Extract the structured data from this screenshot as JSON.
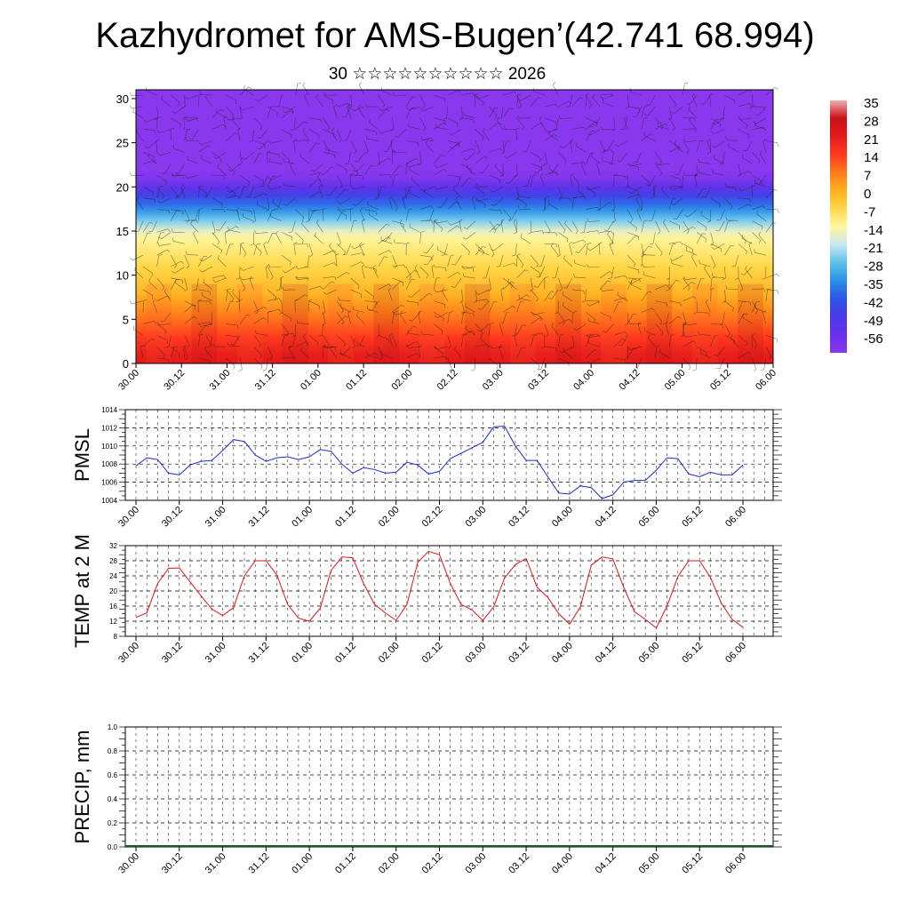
{
  "header": {
    "title": "Kazhydromet for AMS-Bugen’(42.741 68.994)",
    "subtitle": "30 ☆☆☆☆☆☆☆☆☆☆ 2026"
  },
  "time_ticks": [
    "30.00",
    "30.12",
    "31.00",
    "31.12",
    "01.00",
    "01.12",
    "02.00",
    "02.12",
    "03.00",
    "03.12",
    "04.00",
    "04.12",
    "05.00",
    "05.12",
    "06.00"
  ],
  "chart_data": [
    {
      "type": "heatmap",
      "name": "upper-air temperature and wind cross-section",
      "x_ticks": [
        "30.00",
        "30.12",
        "31.00",
        "31.12",
        "01.00",
        "01.12",
        "02.00",
        "02.12",
        "03.00",
        "03.12",
        "04.00",
        "04.12",
        "05.00",
        "05.12",
        "06.00"
      ],
      "y_ticks": [
        0,
        5,
        10,
        15,
        20,
        25,
        30
      ],
      "ylim": [
        0,
        31
      ],
      "levels": [
        0,
        1,
        2,
        3,
        4,
        5,
        6,
        7,
        8,
        9,
        10,
        11,
        12,
        13,
        14,
        15,
        16,
        17,
        18,
        19,
        20,
        21,
        22,
        23,
        24,
        25,
        26,
        27,
        28,
        29,
        30,
        31
      ],
      "temperature_by_level": [
        29,
        27,
        24,
        21,
        18,
        15,
        12,
        9,
        6,
        4,
        2,
        0,
        -2,
        -4,
        -6,
        -10,
        -18,
        -25,
        -32,
        -40,
        -47,
        -54,
        -58,
        -60,
        -60,
        -59,
        -58,
        -57,
        -57,
        -57,
        -58,
        -58
      ],
      "colorbar": {
        "labels": [
          "35",
          "28",
          "21",
          "14",
          "7",
          "0",
          "-7",
          "-14",
          "-21",
          "-28",
          "-35",
          "-42",
          "-49",
          "-56"
        ],
        "colors": [
          "#f2aaaa",
          "#e31a1c",
          "#ff3a1e",
          "#ff7b1a",
          "#ffb020",
          "#ffd84a",
          "#fff8a0",
          "#c8e6f0",
          "#5cc2ea",
          "#2a8fe8",
          "#2f55e6",
          "#4a3ae8",
          "#6a30ea",
          "#8a38ee"
        ]
      },
      "colorscale": [
        "#8a38ee",
        "#6a30ea",
        "#4a3ae8",
        "#2f55e6",
        "#2a8fe8",
        "#5cc2ea",
        "#c8e6f0",
        "#fff8a0",
        "#ffd84a",
        "#ffb020",
        "#ff7b1a",
        "#ff3a1e",
        "#e31a1c",
        "#c8121a",
        "#f2aaaa"
      ],
      "grid": false
    },
    {
      "type": "line",
      "ylabel": "PMSL",
      "ylim": [
        1004,
        1014
      ],
      "y_ticks": [
        "1004",
        "1006",
        "1008",
        "1010",
        "1012",
        "1014"
      ],
      "x_ticks": [
        "30.00",
        "30.12",
        "31.00",
        "31.12",
        "01.00",
        "01.12",
        "02.00",
        "02.12",
        "03.00",
        "03.12",
        "04.00",
        "04.12",
        "05.00",
        "05.12",
        "06.00"
      ],
      "interval_hours": 3,
      "series": [
        {
          "color": "#1a2bd6",
          "values": [
            1007.8,
            1008.7,
            1008.5,
            1007.0,
            1006.8,
            1007.9,
            1008.3,
            1008.4,
            1009.5,
            1010.7,
            1010.5,
            1009.0,
            1008.3,
            1008.7,
            1008.8,
            1008.5,
            1008.8,
            1009.6,
            1009.4,
            1008.0,
            1007.0,
            1007.6,
            1007.4,
            1007.0,
            1007.1,
            1008.2,
            1007.9,
            1006.9,
            1007.2,
            1008.6,
            1009.2,
            1009.8,
            1010.4,
            1012.1,
            1012.2,
            1010.0,
            1008.4,
            1008.4,
            1006.6,
            1004.8,
            1004.7,
            1005.6,
            1005.4,
            1004.2,
            1004.6,
            1006.0,
            1006.2,
            1006.2,
            1007.3,
            1008.7,
            1008.6,
            1006.9,
            1006.6,
            1007.1,
            1006.8,
            1006.8,
            1007.9
          ]
        }
      ],
      "grid": true
    },
    {
      "type": "line",
      "ylabel": "TEMP at 2 M",
      "ylim": [
        8,
        32
      ],
      "y_ticks": [
        "8",
        "12",
        "16",
        "20",
        "24",
        "28",
        "32"
      ],
      "x_ticks": [
        "30.00",
        "30.12",
        "31.00",
        "31.12",
        "01.00",
        "01.12",
        "02.00",
        "02.12",
        "03.00",
        "03.12",
        "04.00",
        "04.12",
        "05.00",
        "05.12",
        "06.00"
      ],
      "interval_hours": 3,
      "series": [
        {
          "color": "#e3121c",
          "values": [
            13.0,
            14.2,
            22.0,
            26.0,
            26.1,
            22.4,
            18.7,
            15.2,
            13.5,
            15.6,
            24.0,
            28.0,
            28.0,
            24.2,
            16.4,
            12.8,
            12.0,
            15.4,
            25.4,
            29.0,
            28.8,
            22.0,
            16.5,
            14.2,
            12.2,
            16.4,
            27.6,
            30.5,
            29.6,
            22.0,
            16.4,
            15.0,
            12.2,
            15.8,
            23.4,
            27.0,
            28.6,
            21.0,
            18.3,
            14.0,
            11.2,
            15.8,
            26.8,
            29.0,
            28.5,
            21.0,
            14.5,
            12.5,
            10.2,
            16.0,
            23.8,
            28.0,
            28.0,
            23.6,
            16.8,
            12.5,
            10.4
          ]
        }
      ],
      "grid": true
    },
    {
      "type": "bar",
      "ylabel": "PRECIP, mm",
      "ylim": [
        0,
        1
      ],
      "y_ticks": [
        "0.0",
        "0.2",
        "0.4",
        "0.6",
        "0.8",
        "1.0"
      ],
      "x_ticks": [
        "30.00",
        "30.12",
        "31.00",
        "31.12",
        "01.00",
        "01.12",
        "02.00",
        "02.12",
        "03.00",
        "03.12",
        "04.00",
        "04.12",
        "05.00",
        "05.12",
        "06.00"
      ],
      "values": [],
      "grid": true
    }
  ]
}
